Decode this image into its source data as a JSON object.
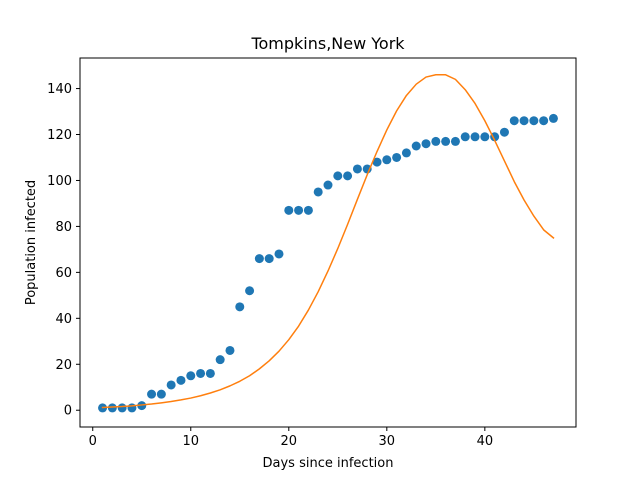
{
  "chart_data": {
    "type": "scatter",
    "title": "Tompkins,New York",
    "xlabel": "Days since infection",
    "ylabel": "Population infected",
    "xlim": [
      -1.3,
      49.3
    ],
    "ylim": [
      -7.3,
      153.3
    ],
    "xticks": [
      0,
      10,
      20,
      30,
      40
    ],
    "yticks": [
      0,
      20,
      40,
      60,
      80,
      100,
      120,
      140
    ],
    "grid": false,
    "series": [
      {
        "kind": "scatter",
        "color": "#1f77b4",
        "x": [
          1,
          2,
          3,
          4,
          5,
          6,
          7,
          8,
          9,
          10,
          11,
          12,
          13,
          14,
          15,
          16,
          17,
          18,
          19,
          20,
          21,
          22,
          23,
          24,
          25,
          26,
          27,
          28,
          29,
          30,
          31,
          32,
          33,
          34,
          35,
          36,
          37,
          38,
          39,
          40,
          41,
          42,
          43,
          44,
          45,
          46,
          47
        ],
        "y": [
          1,
          1,
          1,
          1,
          2,
          7,
          7,
          11,
          13,
          15,
          16,
          16,
          22,
          26,
          45,
          52,
          66,
          66,
          68,
          87,
          87,
          87,
          95,
          98,
          102,
          102,
          105,
          105,
          108,
          109,
          110,
          112,
          115,
          116,
          117,
          117,
          117,
          119,
          119,
          119,
          119,
          121,
          126,
          126,
          126,
          126,
          127
        ]
      },
      {
        "kind": "line",
        "color": "#ff7f0e",
        "x": [
          1,
          2,
          3,
          4,
          5,
          6,
          7,
          8,
          9,
          10,
          11,
          12,
          13,
          14,
          15,
          16,
          17,
          18,
          19,
          20,
          21,
          22,
          23,
          24,
          25,
          26,
          27,
          28,
          29,
          30,
          31,
          32,
          33,
          34,
          35,
          36,
          37,
          38,
          39,
          40,
          41,
          42,
          43,
          44,
          45,
          46,
          47
        ],
        "y": [
          1.2,
          1.4,
          1.6,
          1.9,
          2.3,
          2.7,
          3.2,
          3.8,
          4.5,
          5.3,
          6.3,
          7.5,
          8.9,
          10.6,
          12.6,
          15.0,
          18.0,
          21.5,
          25.7,
          30.7,
          36.6,
          43.6,
          51.6,
          60.6,
          70.4,
          80.9,
          91.8,
          102.5,
          112.6,
          122.0,
          130.3,
          137.0,
          141.9,
          145.0,
          146.0,
          146.0,
          144.0,
          139.5,
          133.5,
          126.0,
          117.5,
          108.5,
          99.5,
          91.5,
          84.5,
          78.5,
          75.0
        ]
      }
    ]
  }
}
